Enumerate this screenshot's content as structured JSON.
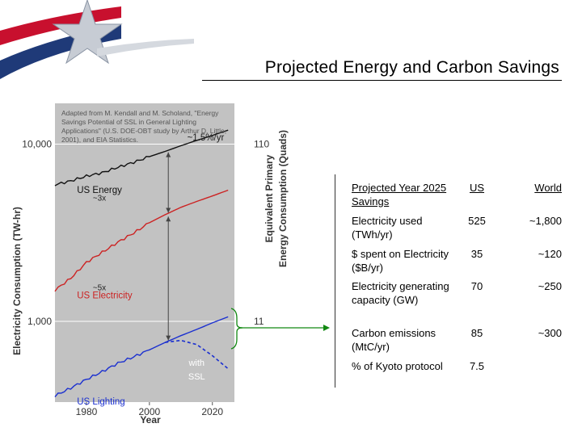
{
  "title": "Projected Energy and Carbon Savings",
  "colors": {
    "accent_red": "#cc2222",
    "navy": "#1f3a78",
    "arrow_green": "#118811"
  },
  "chart_data": {
    "type": "line",
    "note": "Adapted from M. Kendall and M. Scholand, \"Energy Savings Potential of SSL in General Lighting Applications\" (U.S. DOE-OBT study by Arthur D. Little, 2001), and EIA Statistics.",
    "xlabel": "Year",
    "ylabel": "Electricity Consumption (TW-hr)",
    "y2label_line1": "Equivalent Primary",
    "y2label_line2": "Energy Consumption (Quads)",
    "log_y": true,
    "xlim": [
      1970,
      2027
    ],
    "ylim": [
      350,
      17000
    ],
    "x_ticks": [
      {
        "value": 1980,
        "label": "1980"
      },
      {
        "value": 2000,
        "label": "2000"
      },
      {
        "value": 2020,
        "label": "2020"
      }
    ],
    "y_ticks": [
      {
        "value": 1000,
        "label": "1,000"
      },
      {
        "value": 10000,
        "label": "10,000"
      }
    ],
    "y2_ticks": [
      {
        "value": 1000,
        "label": "11"
      },
      {
        "value": 10000,
        "label": "110"
      }
    ],
    "series": [
      {
        "name": "US Energy",
        "color": "#111111",
        "x": [
          1970,
          1975,
          1980,
          1985,
          1990,
          1995,
          2000,
          2005,
          2010,
          2015,
          2020,
          2025
        ],
        "y": [
          5900,
          6200,
          6600,
          6900,
          7400,
          7900,
          8500,
          9100,
          9800,
          10500,
          11200,
          12000
        ]
      },
      {
        "name": "US Electricity",
        "color": "#cc2222",
        "x": [
          1970,
          1975,
          1980,
          1985,
          1990,
          1995,
          2000,
          2005,
          2010,
          2015,
          2020,
          2025
        ],
        "y": [
          1500,
          1750,
          2150,
          2450,
          2800,
          3150,
          3600,
          4000,
          4400,
          4750,
          5100,
          5500
        ]
      },
      {
        "name": "US Lighting",
        "color": "#1a2fd0",
        "x": [
          1970,
          1975,
          1980,
          1985,
          1990,
          1995,
          2000,
          2005,
          2010,
          2015,
          2020,
          2025
        ],
        "y": [
          380,
          420,
          470,
          520,
          580,
          630,
          690,
          760,
          830,
          900,
          980,
          1060
        ]
      },
      {
        "name": "with SSL",
        "label_line1": "with",
        "label_line2": "SSL",
        "color": "#1a2fd0",
        "dashed": true,
        "x": [
          2005,
          2010,
          2015,
          2020,
          2025
        ],
        "y": [
          760,
          780,
          740,
          640,
          540
        ]
      }
    ],
    "annotations": [
      {
        "text": "~1.5%/yr",
        "x": 2012,
        "y": 10500
      },
      {
        "text": "~3x",
        "x": 1982,
        "y": 4800
      },
      {
        "text": "~5x",
        "x": 1982,
        "y": 1500
      }
    ]
  },
  "table": {
    "header": {
      "label": "Projected Year 2025 Savings",
      "us": "US",
      "world": "World"
    },
    "rows": [
      {
        "label": "Electricity used (TWh/yr)",
        "us": "525",
        "world": "~1,800"
      },
      {
        "label": "$ spent on Electricity ($B/yr)",
        "us": "35",
        "world": "~120"
      },
      {
        "label": "Electricity generating capacity (GW)",
        "us": "70",
        "world": "~250"
      },
      {
        "label": "Carbon emissions (MtC/yr)",
        "us": "85",
        "world": "~300"
      },
      {
        "label": "% of Kyoto protocol",
        "us": "7.5",
        "world": ""
      }
    ]
  }
}
